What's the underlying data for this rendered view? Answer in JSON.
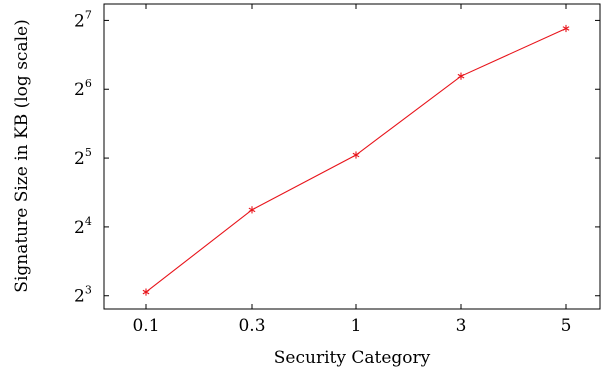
{
  "chart_data": {
    "type": "line",
    "title": "",
    "xlabel": "Security Category",
    "ylabel": "Signature Size in KB (log scale)",
    "categories": [
      "0.1",
      "0.3",
      "1",
      "3",
      "5"
    ],
    "y_scale": "log2",
    "ylim": [
      7.0,
      151.0
    ],
    "y_ticks": [
      {
        "value": 8,
        "base": "2",
        "exp": "3"
      },
      {
        "value": 16,
        "base": "2",
        "exp": "4"
      },
      {
        "value": 32,
        "base": "2",
        "exp": "5"
      },
      {
        "value": 64,
        "base": "2",
        "exp": "6"
      },
      {
        "value": 128,
        "base": "2",
        "exp": "7"
      }
    ],
    "grid": false,
    "series": [
      {
        "color": "#e8141b",
        "marker": "asterisk",
        "values": [
          8.3,
          19.0,
          33.0,
          73.0,
          118.0
        ]
      }
    ]
  }
}
